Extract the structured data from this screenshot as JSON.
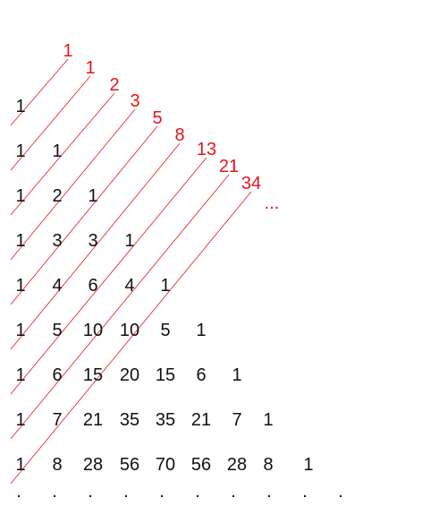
{
  "colors": {
    "pascal_numbers": "#111111",
    "fibonacci_numbers": "#e8141b",
    "diagonal_lines": "#e8141b"
  },
  "pascal_rows": [
    [
      "1"
    ],
    [
      "1",
      "1"
    ],
    [
      "1",
      "2",
      "1"
    ],
    [
      "1",
      "3",
      "3",
      "1"
    ],
    [
      "1",
      "4",
      "6",
      "4",
      "1"
    ],
    [
      "1",
      "5",
      "10",
      "10",
      "5",
      "1"
    ],
    [
      "1",
      "6",
      "15",
      "20",
      "15",
      "6",
      "1"
    ],
    [
      "1",
      "7",
      "21",
      "35",
      "35",
      "21",
      "7",
      "1"
    ],
    [
      "1",
      "8",
      "28",
      "56",
      "70",
      "56",
      "28",
      "8",
      "1"
    ]
  ],
  "fibonacci_labels": [
    "1",
    "1",
    "2",
    "3",
    "5",
    "8",
    "13",
    "21",
    "34"
  ],
  "fibonacci_continuation": "...",
  "bottom_dots": [
    ".",
    ".",
    ".",
    ".",
    ".",
    ".",
    ".",
    ".",
    ".",
    "."
  ]
}
